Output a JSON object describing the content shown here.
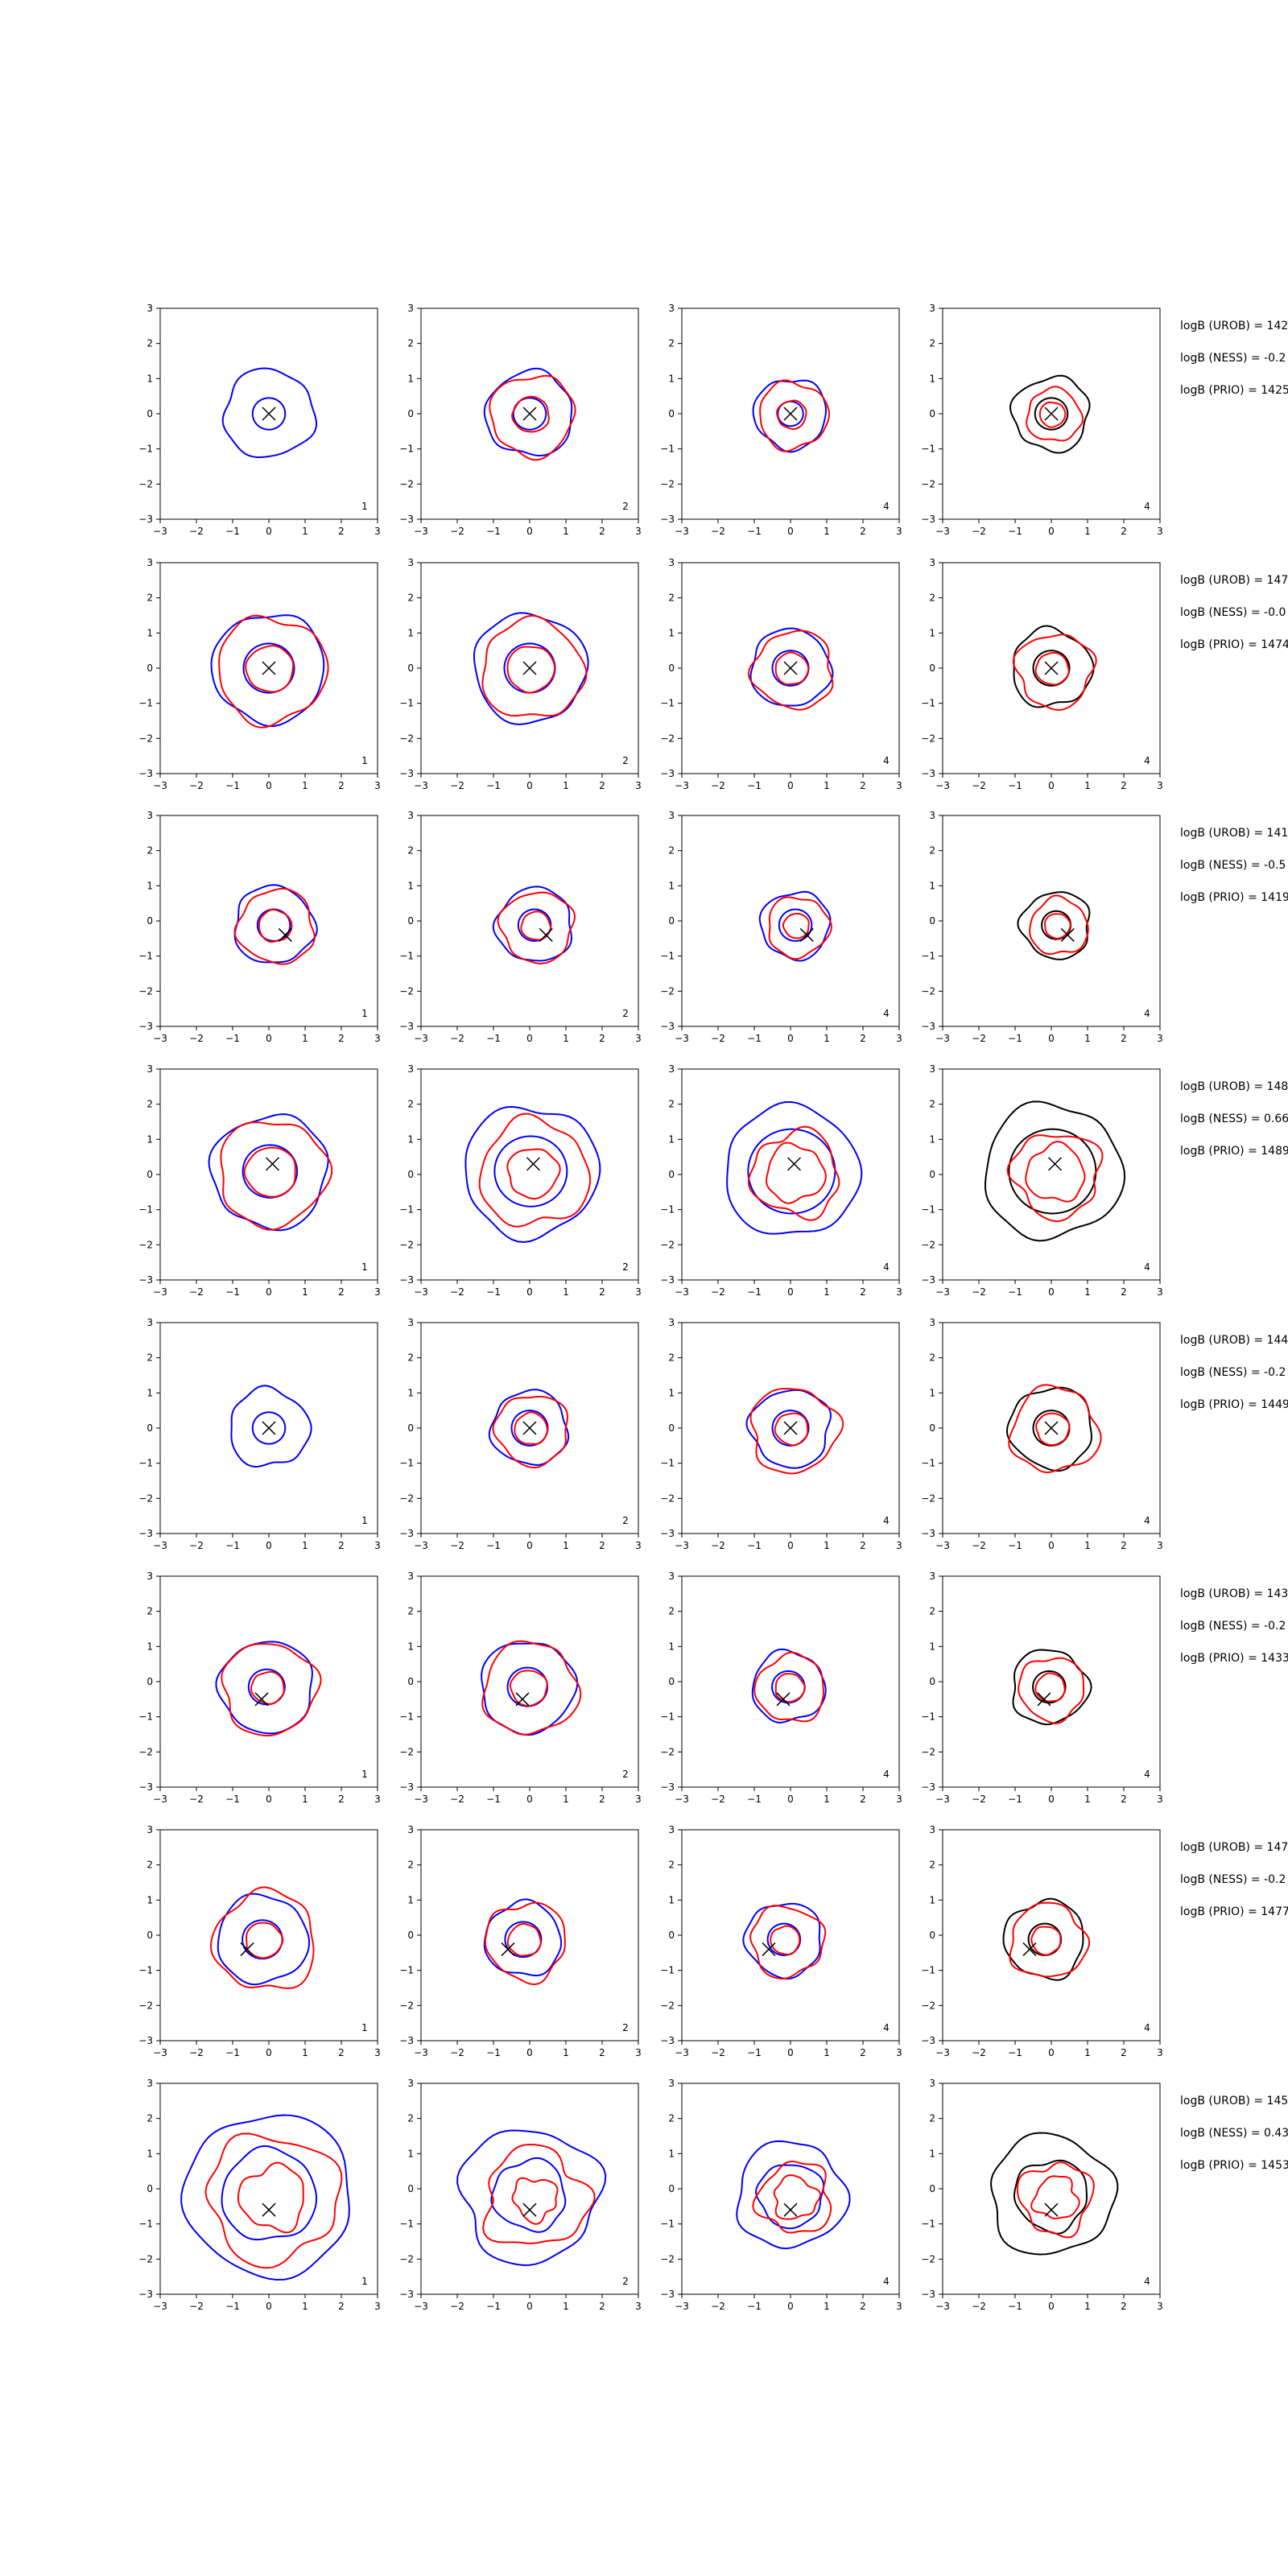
{
  "chart_data": {
    "type": "contour_grid",
    "rows": 8,
    "cols": 4,
    "axes": {
      "xlim": [
        -3,
        3
      ],
      "ylim": [
        -3,
        3
      ],
      "ticks": [
        -3,
        -2,
        -1,
        0,
        1,
        2,
        3
      ],
      "grid": false
    },
    "series": [
      {
        "name": "",
        "color": "#0000ff"
      },
      {
        "name": "",
        "color": "#ff0000"
      },
      {
        "name": "",
        "color": "#000000"
      }
    ],
    "column_labels": [
      "1",
      "2",
      "4",
      "4"
    ],
    "panels": [
      {
        "row": 0,
        "cross": [
          0.0,
          0.0
        ],
        "annotations": [
          "logB (UROB) = 142",
          "logB (NESS) = -0.2",
          "logB (PRIO) = 1425"
        ],
        "cols": [
          {
            "blue": [
              [
                0.45,
                0.0
              ],
              [
                1.25,
                0.1
              ]
            ],
            "red": []
          },
          {
            "blue": [
              [
                0.45,
                0.0
              ],
              [
                1.2,
                0.1
              ]
            ],
            "red": [
              [
                0.5,
                0.06
              ],
              [
                1.15,
                0.12
              ]
            ]
          },
          {
            "blue": [
              [
                0.35,
                0.0
              ],
              [
                1.0,
                0.1
              ]
            ],
            "red": [
              [
                0.4,
                0.06
              ],
              [
                0.95,
                0.12
              ]
            ]
          },
          {
            "black": [
              [
                0.45,
                0.0
              ],
              [
                1.05,
                0.13
              ]
            ],
            "red": [
              [
                0.35,
                0.05
              ],
              [
                0.75,
                0.12
              ]
            ]
          }
        ]
      },
      {
        "row": 1,
        "cross": [
          0.0,
          0.0
        ],
        "annotations": [
          "logB (UROB) = 147",
          "logB (NESS) = -0.0",
          "logB (PRIO) = 1474"
        ],
        "cols": [
          {
            "blue": [
              [
                0.7,
                0.0
              ],
              [
                1.55,
                0.08
              ]
            ],
            "red": [
              [
                0.65,
                0.05
              ],
              [
                1.5,
                0.12
              ]
            ]
          },
          {
            "blue": [
              [
                0.7,
                0.0
              ],
              [
                1.55,
                0.08
              ]
            ],
            "red": [
              [
                0.65,
                0.05
              ],
              [
                1.4,
                0.12
              ]
            ]
          },
          {
            "blue": [
              [
                0.5,
                0.0
              ],
              [
                1.1,
                0.08
              ]
            ],
            "red": [
              [
                0.45,
                0.05
              ],
              [
                1.1,
                0.14
              ]
            ]
          },
          {
            "black": [
              [
                0.5,
                0.0
              ],
              [
                1.1,
                0.12
              ]
            ],
            "red": [
              [
                0.45,
                0.05
              ],
              [
                1.05,
                0.16
              ]
            ]
          }
        ]
      },
      {
        "row": 2,
        "cross": [
          0.45,
          -0.4
        ],
        "annotations": [
          "logB (UROB) = 141",
          "logB (NESS) = -0.5",
          "logB (PRIO) = 1419"
        ],
        "cols": [
          {
            "blue": [
              [
                0.45,
                0.0
              ],
              [
                1.1,
                0.1
              ]
            ],
            "red": [
              [
                0.45,
                0.06
              ],
              [
                1.05,
                0.12
              ]
            ]
          },
          {
            "blue": [
              [
                0.45,
                0.0
              ],
              [
                1.05,
                0.1
              ]
            ],
            "red": [
              [
                0.4,
                0.06
              ],
              [
                1.0,
                0.12
              ]
            ]
          },
          {
            "blue": [
              [
                0.45,
                0.0
              ],
              [
                0.95,
                0.1
              ]
            ],
            "red": [
              [
                0.35,
                0.05
              ],
              [
                0.85,
                0.12
              ]
            ]
          },
          {
            "black": [
              [
                0.4,
                0.0
              ],
              [
                0.95,
                0.12
              ]
            ],
            "red": [
              [
                0.35,
                0.05
              ],
              [
                0.8,
                0.12
              ]
            ]
          }
        ]
      },
      {
        "row": 3,
        "cross": [
          0.1,
          0.3
        ],
        "annotations": [
          "logB (UROB) = 148",
          "logB (NESS) = 0.66",
          "logB (PRIO) = 1489"
        ],
        "cols": [
          {
            "blue": [
              [
                0.75,
                0.0
              ],
              [
                1.6,
                0.1
              ]
            ],
            "red": [
              [
                0.7,
                0.05
              ],
              [
                1.5,
                0.12
              ]
            ]
          },
          {
            "blue": [
              [
                1.0,
                0.0
              ],
              [
                1.85,
                0.1
              ]
            ],
            "red": [
              [
                0.7,
                0.1
              ],
              [
                1.5,
                0.15
              ]
            ]
          },
          {
            "blue": [
              [
                1.2,
                0.0
              ],
              [
                1.85,
                0.08
              ]
            ],
            "red": [
              [
                0.8,
                0.15
              ],
              [
                1.2,
                0.2
              ]
            ]
          },
          {
            "black": [
              [
                1.2,
                0.0
              ],
              [
                1.9,
                0.1
              ]
            ],
            "red": [
              [
                0.8,
                0.15
              ],
              [
                1.2,
                0.2
              ]
            ]
          }
        ]
      },
      {
        "row": 4,
        "cross": [
          0.0,
          0.0
        ],
        "annotations": [
          "logB (UROB) = 144",
          "logB (NESS) = -0.2",
          "logB (PRIO) = 1449"
        ],
        "cols": [
          {
            "blue": [
              [
                0.45,
                0.0
              ],
              [
                1.1,
                0.12
              ]
            ],
            "red": []
          },
          {
            "blue": [
              [
                0.5,
                0.0
              ],
              [
                1.05,
                0.1
              ]
            ],
            "red": [
              [
                0.45,
                0.06
              ],
              [
                1.0,
                0.12
              ]
            ]
          },
          {
            "blue": [
              [
                0.5,
                0.0
              ],
              [
                1.1,
                0.12
              ]
            ],
            "red": [
              [
                0.45,
                0.06
              ],
              [
                1.2,
                0.15
              ]
            ]
          },
          {
            "black": [
              [
                0.5,
                0.0
              ],
              [
                1.15,
                0.1
              ]
            ],
            "red": [
              [
                0.45,
                0.06
              ],
              [
                1.2,
                0.15
              ]
            ]
          }
        ]
      },
      {
        "row": 5,
        "cross": [
          -0.2,
          -0.5
        ],
        "annotations": [
          "logB (UROB) = 143",
          "logB (NESS) = -0.2",
          "logB (PRIO) = 1433"
        ],
        "cols": [
          {
            "blue": [
              [
                0.5,
                0.0
              ],
              [
                1.3,
                0.08
              ]
            ],
            "red": [
              [
                0.45,
                0.06
              ],
              [
                1.3,
                0.12
              ]
            ]
          },
          {
            "blue": [
              [
                0.55,
                0.0
              ],
              [
                1.3,
                0.08
              ]
            ],
            "red": [
              [
                0.5,
                0.06
              ],
              [
                1.3,
                0.12
              ]
            ]
          },
          {
            "blue": [
              [
                0.45,
                0.0
              ],
              [
                1.0,
                0.1
              ]
            ],
            "red": [
              [
                0.4,
                0.06
              ],
              [
                0.95,
                0.12
              ]
            ]
          },
          {
            "black": [
              [
                0.45,
                0.0
              ],
              [
                1.05,
                0.12
              ]
            ],
            "red": [
              [
                0.4,
                0.06
              ],
              [
                0.9,
                0.12
              ]
            ]
          }
        ]
      },
      {
        "row": 6,
        "cross": [
          -0.6,
          -0.4
        ],
        "annotations": [
          "logB (UROB) = 147",
          "logB (NESS) = -0.2",
          "logB (PRIO) = 1477"
        ],
        "cols": [
          {
            "blue": [
              [
                0.55,
                0.0
              ],
              [
                1.25,
                0.08
              ]
            ],
            "red": [
              [
                0.5,
                0.06
              ],
              [
                1.4,
                0.14
              ]
            ]
          },
          {
            "blue": [
              [
                0.5,
                0.0
              ],
              [
                1.05,
                0.1
              ]
            ],
            "red": [
              [
                0.45,
                0.06
              ],
              [
                1.1,
                0.14
              ]
            ]
          },
          {
            "blue": [
              [
                0.45,
                0.0
              ],
              [
                1.05,
                0.1
              ]
            ],
            "red": [
              [
                0.4,
                0.06
              ],
              [
                1.0,
                0.14
              ]
            ]
          },
          {
            "black": [
              [
                0.45,
                0.0
              ],
              [
                1.1,
                0.12
              ]
            ],
            "red": [
              [
                0.4,
                0.06
              ],
              [
                1.05,
                0.14
              ]
            ]
          }
        ]
      },
      {
        "row": 7,
        "cross": [
          0.0,
          -0.6
        ],
        "annotations": [
          "logB (UROB) = 145",
          "logB (NESS) = 0.43",
          "logB (PRIO) = 1453"
        ],
        "cols": [
          {
            "blue": [
              [
                1.3,
                0.08
              ],
              [
                2.3,
                0.08
              ]
            ],
            "red": [
              [
                0.9,
                0.2
              ],
              [
                1.8,
                0.18
              ]
            ]
          },
          {
            "blue": [
              [
                1.0,
                0.12
              ],
              [
                1.9,
                0.15
              ]
            ],
            "red": [
              [
                0.6,
                0.25
              ],
              [
                1.4,
                0.25
              ]
            ]
          },
          {
            "blue": [
              [
                0.9,
                0.1
              ],
              [
                1.5,
                0.12
              ]
            ],
            "red": [
              [
                0.6,
                0.22
              ],
              [
                1.0,
                0.22
              ]
            ]
          },
          {
            "black": [
              [
                1.0,
                0.12
              ],
              [
                1.7,
                0.12
              ]
            ],
            "red": [
              [
                0.6,
                0.22
              ],
              [
                1.0,
                0.22
              ]
            ]
          }
        ]
      }
    ]
  }
}
